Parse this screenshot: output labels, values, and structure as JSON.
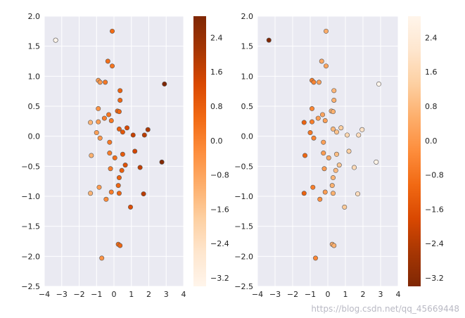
{
  "watermark": "https://blog.csdn.net/qq_45669448",
  "chart_data": [
    {
      "type": "scatter",
      "title": "",
      "xlabel": "",
      "ylabel": "",
      "xlim": [
        -4,
        4
      ],
      "ylim": [
        -2.5,
        2.0
      ],
      "xticks": [
        "−4",
        "−3",
        "−2",
        "−1",
        "0",
        "1",
        "2",
        "3",
        "4"
      ],
      "yticks": [
        "−2.5",
        "−2.0",
        "−1.5",
        "−1.0",
        "−0.5",
        "0.0",
        "0.5",
        "1.0",
        "1.5",
        "2.0"
      ],
      "grid": true,
      "colormap": "Oranges",
      "colorbar": {
        "range": [
          -3.4,
          2.9
        ],
        "ticks": [
          "2.4",
          "1.6",
          "0.8",
          "0.0",
          "−0.8",
          "−1.6",
          "−2.4",
          "−3.2"
        ],
        "reversed": false
      },
      "points": [
        {
          "x": -3.35,
          "y": 1.6,
          "c": -3.4
        },
        {
          "x": -0.1,
          "y": 1.75,
          "c": 0.5
        },
        {
          "x": -0.35,
          "y": 1.25,
          "c": 0.4
        },
        {
          "x": -0.1,
          "y": 1.17,
          "c": 0.3
        },
        {
          "x": -0.9,
          "y": 0.93,
          "c": -0.6
        },
        {
          "x": -0.8,
          "y": 0.9,
          "c": -0.5
        },
        {
          "x": -0.5,
          "y": 0.9,
          "c": 0.2
        },
        {
          "x": 0.35,
          "y": 0.76,
          "c": 0.7
        },
        {
          "x": 0.35,
          "y": 0.6,
          "c": 0.6
        },
        {
          "x": 2.9,
          "y": 0.87,
          "c": 2.9
        },
        {
          "x": -0.9,
          "y": 0.46,
          "c": -0.4
        },
        {
          "x": 0.2,
          "y": 0.42,
          "c": 0.6
        },
        {
          "x": 0.3,
          "y": 0.41,
          "c": 0.6
        },
        {
          "x": -0.3,
          "y": 0.36,
          "c": 0.3
        },
        {
          "x": -0.55,
          "y": 0.3,
          "c": 0.1
        },
        {
          "x": -0.15,
          "y": 0.26,
          "c": 0.2
        },
        {
          "x": -1.35,
          "y": 0.23,
          "c": -1.2
        },
        {
          "x": -0.9,
          "y": 0.24,
          "c": -0.6
        },
        {
          "x": 0.3,
          "y": 0.12,
          "c": 0.8
        },
        {
          "x": 0.5,
          "y": 0.07,
          "c": 1.0
        },
        {
          "x": 0.75,
          "y": 0.14,
          "c": 1.3
        },
        {
          "x": 1.1,
          "y": 0.02,
          "c": 1.6
        },
        {
          "x": 1.75,
          "y": 0.02,
          "c": 1.8
        },
        {
          "x": 1.95,
          "y": 0.11,
          "c": 2.0
        },
        {
          "x": -1.0,
          "y": 0.06,
          "c": -0.7
        },
        {
          "x": -0.8,
          "y": -0.03,
          "c": -0.5
        },
        {
          "x": -0.25,
          "y": -0.1,
          "c": 0.2
        },
        {
          "x": -0.25,
          "y": -0.28,
          "c": 0.1
        },
        {
          "x": 0.05,
          "y": -0.36,
          "c": 0.4
        },
        {
          "x": 0.5,
          "y": -0.3,
          "c": 0.9
        },
        {
          "x": 1.2,
          "y": -0.25,
          "c": 1.4
        },
        {
          "x": -1.3,
          "y": -0.32,
          "c": -1.1
        },
        {
          "x": 2.75,
          "y": -0.43,
          "c": 2.8
        },
        {
          "x": 0.65,
          "y": -0.48,
          "c": 1.1
        },
        {
          "x": 0.45,
          "y": -0.57,
          "c": 0.8
        },
        {
          "x": -0.2,
          "y": -0.54,
          "c": 0.1
        },
        {
          "x": 1.5,
          "y": -0.52,
          "c": 1.7
        },
        {
          "x": 0.3,
          "y": -0.69,
          "c": 0.7
        },
        {
          "x": 0.25,
          "y": -0.82,
          "c": 0.6
        },
        {
          "x": -0.85,
          "y": -0.85,
          "c": -0.6
        },
        {
          "x": -0.15,
          "y": -0.93,
          "c": 0.1
        },
        {
          "x": 0.3,
          "y": -0.95,
          "c": 0.6
        },
        {
          "x": -1.35,
          "y": -0.95,
          "c": -1.2
        },
        {
          "x": 1.7,
          "y": -0.96,
          "c": 1.8
        },
        {
          "x": -0.45,
          "y": -1.05,
          "c": -0.2
        },
        {
          "x": 0.95,
          "y": -1.18,
          "c": 1.2
        },
        {
          "x": 0.25,
          "y": -1.8,
          "c": 0.5
        },
        {
          "x": 0.35,
          "y": -1.82,
          "c": 0.6
        },
        {
          "x": -0.7,
          "y": -2.03,
          "c": -0.4
        }
      ]
    },
    {
      "type": "scatter",
      "title": "",
      "xlabel": "",
      "ylabel": "",
      "xlim": [
        -4,
        4
      ],
      "ylim": [
        -2.5,
        2.0
      ],
      "xticks": [
        "−4",
        "−3",
        "−2",
        "−1",
        "0",
        "1",
        "2",
        "3",
        "4"
      ],
      "yticks": [
        "−2.5",
        "−2.0",
        "−1.5",
        "−1.0",
        "−0.5",
        "0.0",
        "0.5",
        "1.0",
        "1.5",
        "2.0"
      ],
      "grid": true,
      "colormap": "Oranges_r",
      "colorbar": {
        "range": [
          -3.4,
          2.9
        ],
        "ticks": [
          "2.4",
          "1.6",
          "0.8",
          "0.0",
          "−0.8",
          "−1.6",
          "−2.4",
          "−3.2"
        ],
        "reversed": true
      },
      "points_same_as_left": true
    }
  ]
}
